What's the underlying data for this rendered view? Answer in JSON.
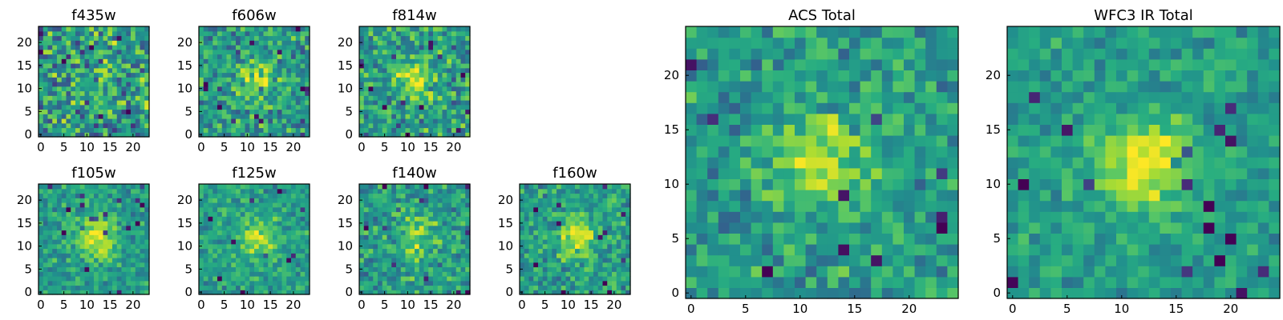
{
  "chart_data": [
    {
      "type": "heatmap",
      "title": "f435w",
      "grid_size": 24,
      "xlim": [
        0,
        24
      ],
      "ylim": [
        0,
        24
      ],
      "xticks": [
        0,
        5,
        10,
        15,
        20
      ],
      "yticks": [
        0,
        5,
        10,
        15,
        20
      ],
      "tick_labels_x": [
        "0",
        "5",
        "10",
        "15",
        "20"
      ],
      "tick_labels_y": [
        "0",
        "5",
        "10",
        "15",
        "20"
      ],
      "blob_center": [
        12,
        12
      ],
      "blob_strength": 0.08,
      "noise": 0.55,
      "seed": 11,
      "colormap": "viridis"
    },
    {
      "type": "heatmap",
      "title": "f606w",
      "grid_size": 24,
      "xlim": [
        0,
        24
      ],
      "ylim": [
        0,
        24
      ],
      "xticks": [
        0,
        5,
        10,
        15,
        20
      ],
      "yticks": [
        0,
        5,
        10,
        15,
        20
      ],
      "tick_labels_x": [
        "0",
        "5",
        "10",
        "15",
        "20"
      ],
      "tick_labels_y": [
        "0",
        "5",
        "10",
        "15",
        "20"
      ],
      "blob_center": [
        12,
        12
      ],
      "blob_strength": 0.3,
      "noise": 0.42,
      "seed": 23,
      "colormap": "viridis"
    },
    {
      "type": "heatmap",
      "title": "f814w",
      "grid_size": 24,
      "xlim": [
        0,
        24
      ],
      "ylim": [
        0,
        24
      ],
      "xticks": [
        0,
        5,
        10,
        15,
        20
      ],
      "yticks": [
        0,
        5,
        10,
        15,
        20
      ],
      "tick_labels_x": [
        "0",
        "5",
        "10",
        "15",
        "20"
      ],
      "tick_labels_y": [
        "0",
        "5",
        "10",
        "15",
        "20"
      ],
      "blob_center": [
        12,
        12
      ],
      "blob_strength": 0.35,
      "noise": 0.45,
      "seed": 37,
      "colormap": "viridis"
    },
    {
      "type": "heatmap",
      "title": "ACS Total",
      "grid_size": 25,
      "xlim": [
        0,
        25
      ],
      "ylim": [
        0,
        25
      ],
      "xticks": [
        0,
        5,
        10,
        15,
        20
      ],
      "yticks": [
        0,
        5,
        10,
        15,
        20
      ],
      "tick_labels_x": [
        "0",
        "5",
        "10",
        "15",
        "20"
      ],
      "tick_labels_y": [
        "0",
        "5",
        "10",
        "15",
        "20"
      ],
      "blob_center": [
        12,
        12
      ],
      "blob_strength": 0.35,
      "noise": 0.35,
      "seed": 53,
      "colormap": "viridis"
    },
    {
      "type": "heatmap",
      "title": "WFC3 IR Total",
      "grid_size": 25,
      "xlim": [
        0,
        25
      ],
      "ylim": [
        0,
        25
      ],
      "xticks": [
        0,
        5,
        10,
        15,
        20
      ],
      "yticks": [
        0,
        5,
        10,
        15,
        20
      ],
      "tick_labels_x": [
        "0",
        "5",
        "10",
        "15",
        "20"
      ],
      "tick_labels_y": [
        "0",
        "5",
        "10",
        "15",
        "20"
      ],
      "blob_center": [
        12,
        12
      ],
      "blob_strength": 0.45,
      "noise": 0.25,
      "seed": 71,
      "colormap": "viridis"
    },
    {
      "type": "heatmap",
      "title": "f105w",
      "grid_size": 24,
      "xlim": [
        0,
        24
      ],
      "ylim": [
        0,
        24
      ],
      "xticks": [
        0,
        5,
        10,
        15,
        20
      ],
      "yticks": [
        0,
        5,
        10,
        15,
        20
      ],
      "tick_labels_x": [
        "0",
        "5",
        "10",
        "15",
        "20"
      ],
      "tick_labels_y": [
        "0",
        "5",
        "10",
        "15",
        "20"
      ],
      "blob_center": [
        12,
        12
      ],
      "blob_strength": 0.4,
      "noise": 0.3,
      "seed": 89,
      "colormap": "viridis"
    },
    {
      "type": "heatmap",
      "title": "f125w",
      "grid_size": 24,
      "xlim": [
        0,
        24
      ],
      "ylim": [
        0,
        24
      ],
      "xticks": [
        0,
        5,
        10,
        15,
        20
      ],
      "yticks": [
        0,
        5,
        10,
        15,
        20
      ],
      "tick_labels_x": [
        "0",
        "5",
        "10",
        "15",
        "20"
      ],
      "tick_labels_y": [
        "0",
        "5",
        "10",
        "15",
        "20"
      ],
      "blob_center": [
        12,
        12
      ],
      "blob_strength": 0.35,
      "noise": 0.3,
      "seed": 97,
      "colormap": "viridis"
    },
    {
      "type": "heatmap",
      "title": "f140w",
      "grid_size": 24,
      "xlim": [
        0,
        24
      ],
      "ylim": [
        0,
        24
      ],
      "xticks": [
        0,
        5,
        10,
        15,
        20
      ],
      "yticks": [
        0,
        5,
        10,
        15,
        20
      ],
      "tick_labels_x": [
        "0",
        "5",
        "10",
        "15",
        "20"
      ],
      "tick_labels_y": [
        "0",
        "5",
        "10",
        "15",
        "20"
      ],
      "blob_center": [
        12,
        12
      ],
      "blob_strength": 0.3,
      "noise": 0.38,
      "seed": 109,
      "colormap": "viridis"
    },
    {
      "type": "heatmap",
      "title": "f160w",
      "grid_size": 24,
      "xlim": [
        0,
        24
      ],
      "ylim": [
        0,
        24
      ],
      "xticks": [
        0,
        5,
        10,
        15,
        20
      ],
      "yticks": [
        0,
        5,
        10,
        15,
        20
      ],
      "tick_labels_x": [
        "0",
        "5",
        "10",
        "15",
        "20"
      ],
      "tick_labels_y": [
        "0",
        "5",
        "10",
        "15",
        "20"
      ],
      "blob_center": [
        12,
        12
      ],
      "blob_strength": 0.38,
      "noise": 0.35,
      "seed": 131,
      "colormap": "viridis"
    }
  ]
}
